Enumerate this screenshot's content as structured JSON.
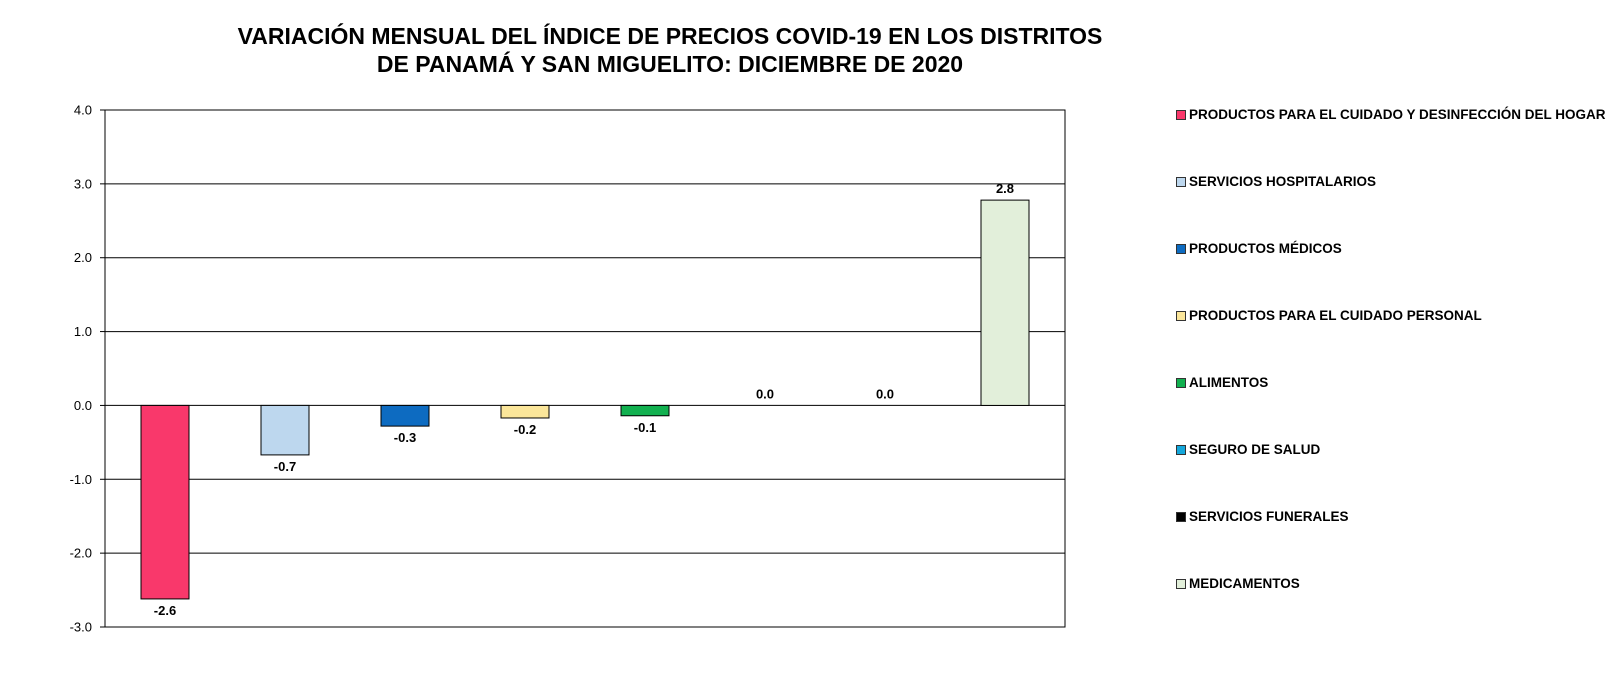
{
  "chart_data": {
    "type": "bar",
    "title_line1": "VARIACIÓN MENSUAL DEL ÍNDICE DE PRECIOS COVID-19 EN LOS DISTRITOS",
    "title_line2": "DE PANAMÁ Y SAN MIGUELITO: DICIEMBRE DE 2020",
    "categories": [
      "PRODUCTOS PARA EL CUIDADO Y DESINFECCIÓN DEL HOGAR",
      "SERVICIOS HOSPITALARIOS",
      "PRODUCTOS MÉDICOS",
      "PRODUCTOS PARA EL CUIDADO PERSONAL",
      "ALIMENTOS",
      "SEGURO DE SALUD",
      "SERVICIOS FUNERALES",
      "MEDICAMENTOS"
    ],
    "values": [
      -2.62,
      -0.67,
      -0.28,
      -0.17,
      -0.14,
      0.0,
      0.0,
      2.78
    ],
    "value_labels": [
      "-2.6",
      "-0.7",
      "-0.3",
      "-0.2",
      "-0.1",
      "0.0",
      "0.0",
      "2.8"
    ],
    "colors": [
      "#f9386b",
      "#bdd7ee",
      "#0d6bc1",
      "#fbe69a",
      "#11b04f",
      "#14a7db",
      "#000000",
      "#e2efda"
    ],
    "ylim": [
      -3.0,
      4.0
    ],
    "yticks": [
      "4.0",
      "3.0",
      "2.0",
      "1.0",
      "0.0",
      "-1.0",
      "-2.0",
      "-3.0"
    ],
    "grid": true,
    "legend_position": "right"
  }
}
